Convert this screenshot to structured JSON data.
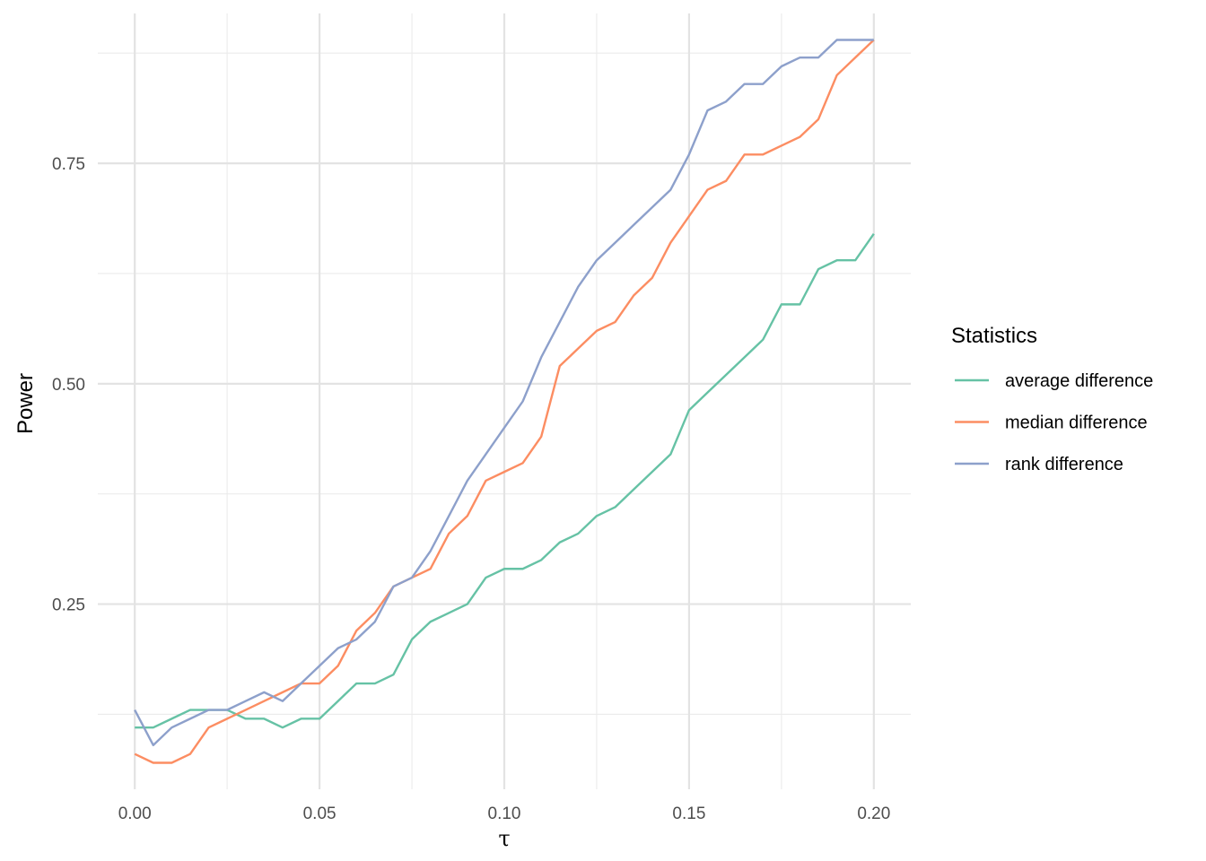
{
  "chart_data": {
    "type": "line",
    "xlabel": "τ",
    "ylabel": "Power",
    "xlim": [
      -0.01,
      0.21
    ],
    "ylim": [
      0.04,
      0.92
    ],
    "x_ticks": [
      0.0,
      0.05,
      0.1,
      0.15,
      0.2
    ],
    "x_tick_labels": [
      "0.00",
      "0.05",
      "0.10",
      "0.15",
      "0.20"
    ],
    "y_ticks": [
      0.25,
      0.5,
      0.75
    ],
    "y_tick_labels": [
      "0.25",
      "0.50",
      "0.75"
    ],
    "x_minor_ticks": [
      0.025,
      0.075,
      0.125,
      0.175
    ],
    "y_minor_ticks": [
      0.125,
      0.375,
      0.625,
      0.875
    ],
    "grid": true,
    "legend": {
      "title": "Statistics",
      "position": "right"
    },
    "x": [
      0.0,
      0.005,
      0.01,
      0.015,
      0.02,
      0.025,
      0.03,
      0.035,
      0.04,
      0.045,
      0.05,
      0.055,
      0.06,
      0.065,
      0.07,
      0.075,
      0.08,
      0.085,
      0.09,
      0.095,
      0.1,
      0.105,
      0.11,
      0.115,
      0.12,
      0.125,
      0.13,
      0.135,
      0.14,
      0.145,
      0.15,
      0.155,
      0.16,
      0.165,
      0.17,
      0.175,
      0.18,
      0.185,
      0.19,
      0.195,
      0.2
    ],
    "series": [
      {
        "name": "average difference",
        "color": "#66C2A5",
        "values": [
          0.11,
          0.11,
          0.12,
          0.13,
          0.13,
          0.13,
          0.12,
          0.12,
          0.11,
          0.12,
          0.12,
          0.14,
          0.16,
          0.16,
          0.17,
          0.21,
          0.23,
          0.24,
          0.25,
          0.28,
          0.29,
          0.29,
          0.3,
          0.32,
          0.33,
          0.35,
          0.36,
          0.38,
          0.4,
          0.42,
          0.47,
          0.49,
          0.51,
          0.53,
          0.55,
          0.59,
          0.59,
          0.63,
          0.64,
          0.64,
          0.67
        ]
      },
      {
        "name": "median difference",
        "color": "#FC8D62",
        "values": [
          0.08,
          0.07,
          0.07,
          0.08,
          0.11,
          0.12,
          0.13,
          0.14,
          0.15,
          0.16,
          0.16,
          0.18,
          0.22,
          0.24,
          0.27,
          0.28,
          0.29,
          0.33,
          0.35,
          0.39,
          0.4,
          0.41,
          0.44,
          0.52,
          0.54,
          0.56,
          0.57,
          0.6,
          0.62,
          0.66,
          0.69,
          0.72,
          0.73,
          0.76,
          0.76,
          0.77,
          0.78,
          0.8,
          0.85,
          0.87,
          0.89
        ]
      },
      {
        "name": "rank difference",
        "color": "#8DA0CB",
        "values": [
          0.13,
          0.09,
          0.11,
          0.12,
          0.13,
          0.13,
          0.14,
          0.15,
          0.14,
          0.16,
          0.18,
          0.2,
          0.21,
          0.23,
          0.27,
          0.28,
          0.31,
          0.35,
          0.39,
          0.42,
          0.45,
          0.48,
          0.53,
          0.57,
          0.61,
          0.64,
          0.66,
          0.68,
          0.7,
          0.72,
          0.76,
          0.81,
          0.82,
          0.84,
          0.84,
          0.86,
          0.87,
          0.87,
          0.89,
          0.89,
          0.89
        ]
      }
    ]
  }
}
